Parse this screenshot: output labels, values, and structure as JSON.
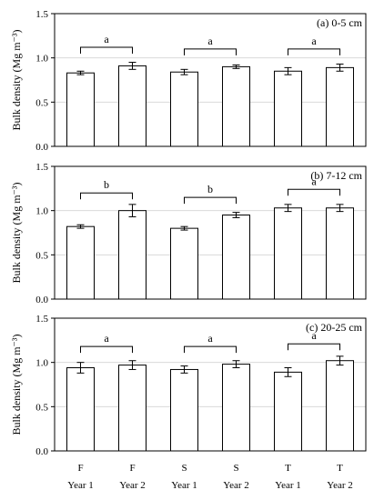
{
  "chart_data": {
    "type": "bar",
    "ylabel": "Bulk density (Mg m⁻³)",
    "ylim": [
      0,
      1.5
    ],
    "yticks": [
      "0.0",
      "0.5",
      "1.0",
      "1.5"
    ],
    "grid": "horizontal",
    "categories": [
      {
        "top": "F",
        "bottom": "Year 1"
      },
      {
        "top": "F",
        "bottom": "Year 2"
      },
      {
        "top": "S",
        "bottom": "Year 1"
      },
      {
        "top": "S",
        "bottom": "Year 2"
      },
      {
        "top": "T",
        "bottom": "Year 1"
      },
      {
        "top": "T",
        "bottom": "Year 2"
      }
    ],
    "panels": [
      {
        "label": "(a) 0-5 cm",
        "values": [
          0.83,
          0.91,
          0.84,
          0.9,
          0.85,
          0.89
        ],
        "errors": [
          0.02,
          0.04,
          0.03,
          0.02,
          0.04,
          0.04
        ],
        "brackets": [
          {
            "letter": "a",
            "top": 1.12
          },
          {
            "letter": "a",
            "top": 1.1
          },
          {
            "letter": "a",
            "top": 1.1
          }
        ]
      },
      {
        "label": "(b) 7-12 cm",
        "values": [
          0.82,
          1.0,
          0.8,
          0.95,
          1.03,
          1.03
        ],
        "errors": [
          0.02,
          0.07,
          0.02,
          0.03,
          0.04,
          0.04
        ],
        "brackets": [
          {
            "letter": "b",
            "top": 1.2
          },
          {
            "letter": "b",
            "top": 1.15
          },
          {
            "letter": "a",
            "top": 1.24
          }
        ]
      },
      {
        "label": "(c) 20-25 cm",
        "values": [
          0.94,
          0.97,
          0.92,
          0.98,
          0.89,
          1.02
        ],
        "errors": [
          0.06,
          0.05,
          0.04,
          0.04,
          0.05,
          0.05
        ],
        "brackets": [
          {
            "letter": "a",
            "top": 1.18
          },
          {
            "letter": "a",
            "top": 1.18
          },
          {
            "letter": "a",
            "top": 1.21
          }
        ]
      }
    ]
  }
}
